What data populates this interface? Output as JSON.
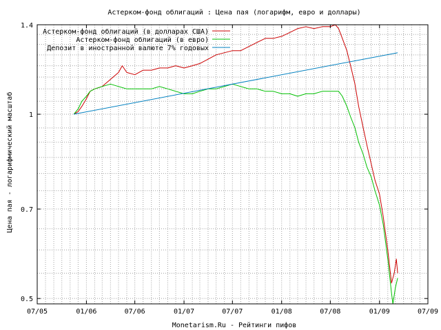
{
  "chart_data": {
    "type": "line",
    "title": "Астерком-фонд облигаций : Цена пая (логарифм, евро и доллары)",
    "xlabel": "Monetarism.Ru - Рейтинги пифов",
    "ylabel": "Цена пая - логарифмический масштаб",
    "y_scale": "log",
    "ylim": [
      0.49,
      1.4
    ],
    "xlim": [
      "2005-07-01",
      "2009-07-01"
    ],
    "grid": true,
    "legend_position": "top-left",
    "x_ticks": [
      {
        "date": "2005-07-01",
        "label": "07/05"
      },
      {
        "date": "2006-01-01",
        "label": "01/06"
      },
      {
        "date": "2006-07-01",
        "label": "07/06"
      },
      {
        "date": "2007-01-01",
        "label": "01/07"
      },
      {
        "date": "2007-07-01",
        "label": "07/07"
      },
      {
        "date": "2008-01-01",
        "label": "01/08"
      },
      {
        "date": "2008-07-01",
        "label": "07/08"
      },
      {
        "date": "2009-01-01",
        "label": "01/09"
      },
      {
        "date": "2009-07-01",
        "label": "07/09"
      }
    ],
    "y_ticks": [
      {
        "value": 0.5,
        "label": "0.5"
      },
      {
        "value": 0.7,
        "label": "0.7"
      },
      {
        "value": 1.0,
        "label": "1"
      },
      {
        "value": 1.4,
        "label": "1.4"
      }
    ],
    "series": [
      {
        "name": "Астерком-фонд облигаций (в долларах США)",
        "color": "#cc0000",
        "points": [
          [
            "2005-11-15",
            1.0
          ],
          [
            "2005-12-01",
            1.01
          ],
          [
            "2005-12-15",
            1.03
          ],
          [
            "2006-01-01",
            1.06
          ],
          [
            "2006-01-15",
            1.09
          ],
          [
            "2006-02-01",
            1.1
          ],
          [
            "2006-03-01",
            1.11
          ],
          [
            "2006-04-01",
            1.14
          ],
          [
            "2006-05-01",
            1.17
          ],
          [
            "2006-05-15",
            1.2
          ],
          [
            "2006-06-01",
            1.17
          ],
          [
            "2006-07-01",
            1.16
          ],
          [
            "2006-08-01",
            1.18
          ],
          [
            "2006-09-01",
            1.18
          ],
          [
            "2006-10-01",
            1.19
          ],
          [
            "2006-11-01",
            1.19
          ],
          [
            "2006-12-01",
            1.2
          ],
          [
            "2007-01-01",
            1.19
          ],
          [
            "2007-02-01",
            1.2
          ],
          [
            "2007-03-01",
            1.21
          ],
          [
            "2007-04-01",
            1.23
          ],
          [
            "2007-05-01",
            1.25
          ],
          [
            "2007-06-01",
            1.26
          ],
          [
            "2007-07-01",
            1.27
          ],
          [
            "2007-08-01",
            1.27
          ],
          [
            "2007-09-01",
            1.29
          ],
          [
            "2007-10-01",
            1.31
          ],
          [
            "2007-11-01",
            1.33
          ],
          [
            "2007-12-01",
            1.33
          ],
          [
            "2008-01-01",
            1.34
          ],
          [
            "2008-02-01",
            1.36
          ],
          [
            "2008-03-01",
            1.38
          ],
          [
            "2008-04-01",
            1.39
          ],
          [
            "2008-05-01",
            1.38
          ],
          [
            "2008-06-01",
            1.39
          ],
          [
            "2008-07-01",
            1.39
          ],
          [
            "2008-07-20",
            1.4
          ],
          [
            "2008-08-01",
            1.38
          ],
          [
            "2008-08-15",
            1.33
          ],
          [
            "2008-09-01",
            1.27
          ],
          [
            "2008-09-15",
            1.2
          ],
          [
            "2008-10-01",
            1.12
          ],
          [
            "2008-10-15",
            1.03
          ],
          [
            "2008-11-01",
            0.95
          ],
          [
            "2008-11-15",
            0.89
          ],
          [
            "2008-12-01",
            0.83
          ],
          [
            "2008-12-15",
            0.78
          ],
          [
            "2009-01-01",
            0.74
          ],
          [
            "2009-01-15",
            0.68
          ],
          [
            "2009-02-01",
            0.6
          ],
          [
            "2009-02-15",
            0.53
          ],
          [
            "2009-02-25",
            0.55
          ],
          [
            "2009-03-05",
            0.58
          ],
          [
            "2009-03-10",
            0.55
          ]
        ]
      },
      {
        "name": "Астерком-фонд облигаций (в евро)",
        "color": "#00c000",
        "points": [
          [
            "2005-11-15",
            1.0
          ],
          [
            "2005-12-01",
            1.02
          ],
          [
            "2005-12-15",
            1.05
          ],
          [
            "2006-01-01",
            1.07
          ],
          [
            "2006-01-15",
            1.09
          ],
          [
            "2006-02-01",
            1.1
          ],
          [
            "2006-03-01",
            1.11
          ],
          [
            "2006-04-01",
            1.12
          ],
          [
            "2006-05-01",
            1.11
          ],
          [
            "2006-06-01",
            1.1
          ],
          [
            "2006-07-01",
            1.1
          ],
          [
            "2006-08-01",
            1.1
          ],
          [
            "2006-09-01",
            1.1
          ],
          [
            "2006-10-01",
            1.11
          ],
          [
            "2006-11-01",
            1.1
          ],
          [
            "2006-12-01",
            1.09
          ],
          [
            "2007-01-01",
            1.08
          ],
          [
            "2007-02-01",
            1.08
          ],
          [
            "2007-03-01",
            1.09
          ],
          [
            "2007-04-01",
            1.1
          ],
          [
            "2007-05-01",
            1.1
          ],
          [
            "2007-06-01",
            1.11
          ],
          [
            "2007-07-01",
            1.12
          ],
          [
            "2007-08-01",
            1.11
          ],
          [
            "2007-09-01",
            1.1
          ],
          [
            "2007-10-01",
            1.1
          ],
          [
            "2007-11-01",
            1.09
          ],
          [
            "2007-12-01",
            1.09
          ],
          [
            "2008-01-01",
            1.08
          ],
          [
            "2008-02-01",
            1.08
          ],
          [
            "2008-03-01",
            1.07
          ],
          [
            "2008-04-01",
            1.08
          ],
          [
            "2008-05-01",
            1.08
          ],
          [
            "2008-06-01",
            1.09
          ],
          [
            "2008-07-01",
            1.09
          ],
          [
            "2008-08-01",
            1.09
          ],
          [
            "2008-08-15",
            1.07
          ],
          [
            "2008-09-01",
            1.03
          ],
          [
            "2008-09-15",
            0.99
          ],
          [
            "2008-10-01",
            0.95
          ],
          [
            "2008-10-15",
            0.9
          ],
          [
            "2008-11-01",
            0.86
          ],
          [
            "2008-11-15",
            0.82
          ],
          [
            "2008-12-01",
            0.79
          ],
          [
            "2008-12-15",
            0.75
          ],
          [
            "2009-01-01",
            0.71
          ],
          [
            "2009-01-15",
            0.66
          ],
          [
            "2009-02-01",
            0.58
          ],
          [
            "2009-02-15",
            0.51
          ],
          [
            "2009-02-20",
            0.49
          ],
          [
            "2009-03-01",
            0.52
          ],
          [
            "2009-03-10",
            0.54
          ]
        ]
      },
      {
        "name": "Депозит в иностранной валюте 7% годовых",
        "color": "#0080c0",
        "points": [
          [
            "2005-11-15",
            1.0
          ],
          [
            "2009-03-10",
            1.26
          ]
        ]
      }
    ]
  }
}
